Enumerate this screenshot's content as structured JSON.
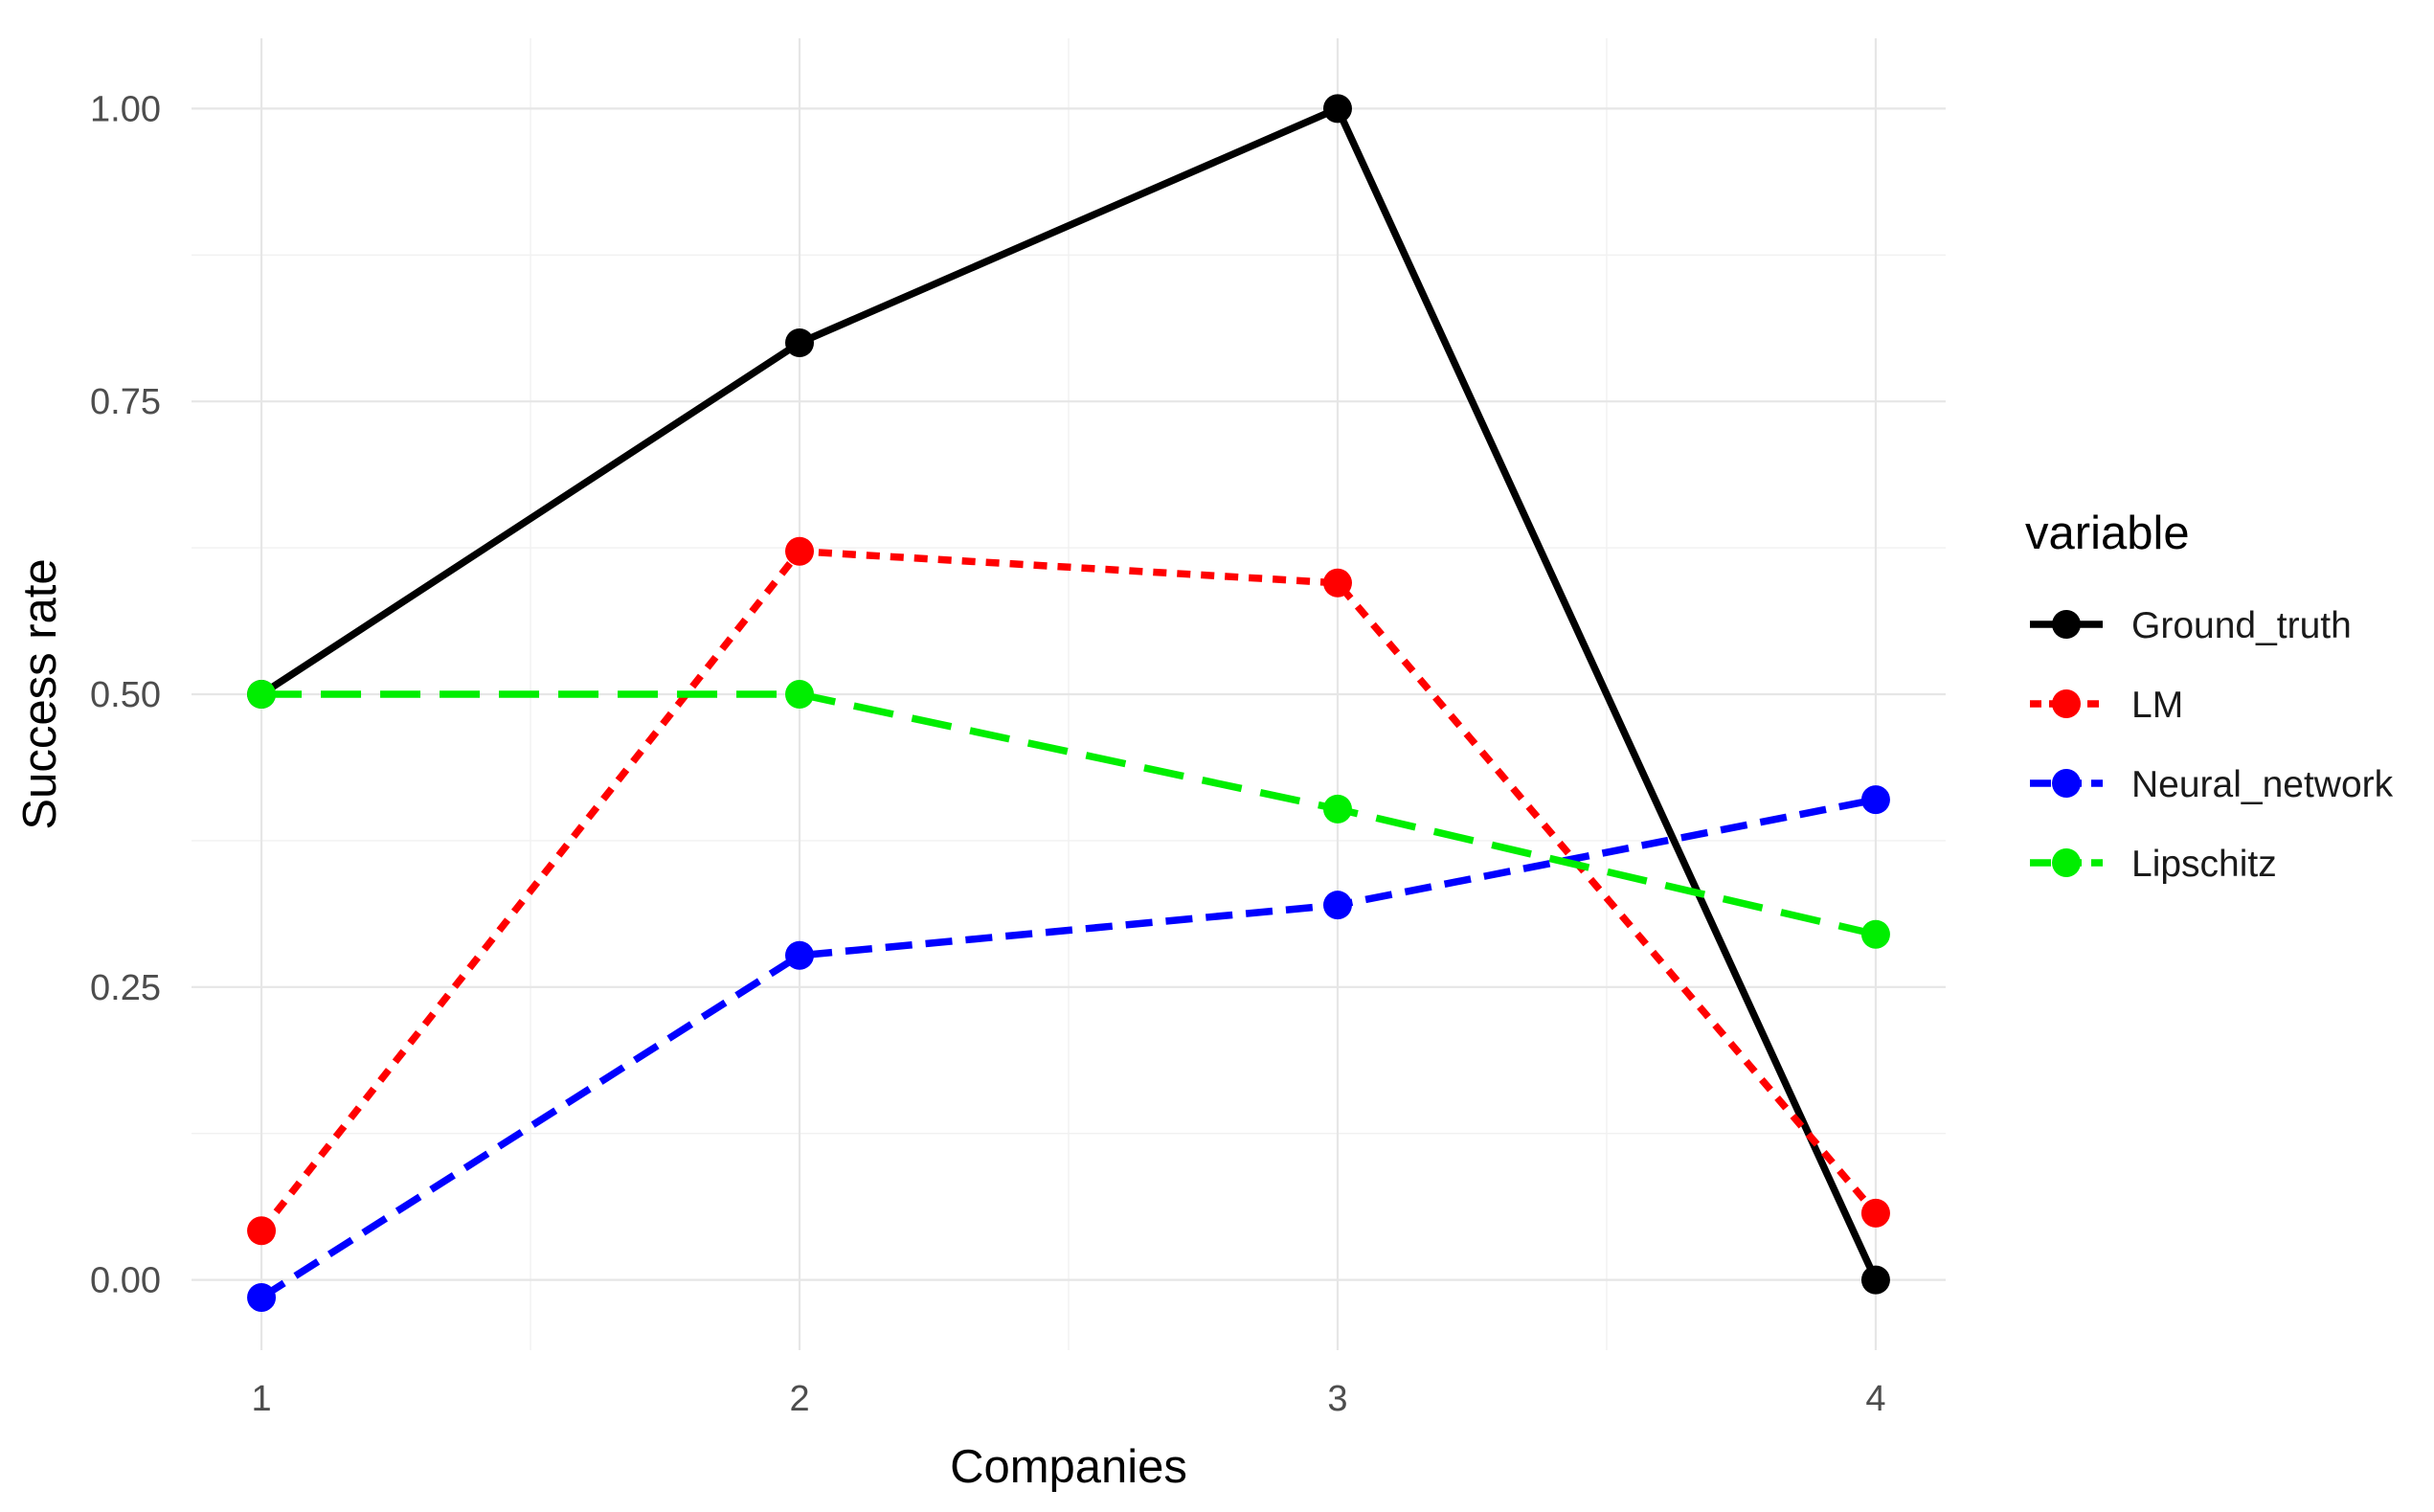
{
  "chart_data": {
    "type": "line",
    "title": "",
    "xlabel": "Companies",
    "ylabel": "Success rate",
    "x": [
      1,
      2,
      3,
      4
    ],
    "x_tick_labels": [
      "1",
      "2",
      "3",
      "4"
    ],
    "y_ticks": [
      0,
      0.25,
      0.5,
      0.75,
      1
    ],
    "y_tick_labels": [
      "0.00",
      "0.25",
      "0.50",
      "0.75",
      "1.00"
    ],
    "xlim": [
      0.87,
      4.13
    ],
    "ylim": [
      -0.06,
      1.06
    ],
    "grid": true,
    "legend": {
      "title": "variable",
      "placement": "right"
    },
    "series": [
      {
        "name": "Ground_truth",
        "color": "#000000",
        "dash": "solid",
        "values": [
          0.5,
          0.8,
          1.0,
          0.0
        ]
      },
      {
        "name": "LM",
        "color": "#ff0000",
        "dash": "dotted",
        "values": [
          0.042,
          0.622,
          0.595,
          0.057
        ]
      },
      {
        "name": "Neural_network",
        "color": "#0000ff",
        "dash": "dashed",
        "values": [
          -0.015,
          0.277,
          0.32,
          0.41
        ]
      },
      {
        "name": "Lipschitz",
        "color": "#00ee00",
        "dash": "longdash",
        "values": [
          0.5,
          0.5,
          0.402,
          0.295
        ]
      }
    ]
  }
}
